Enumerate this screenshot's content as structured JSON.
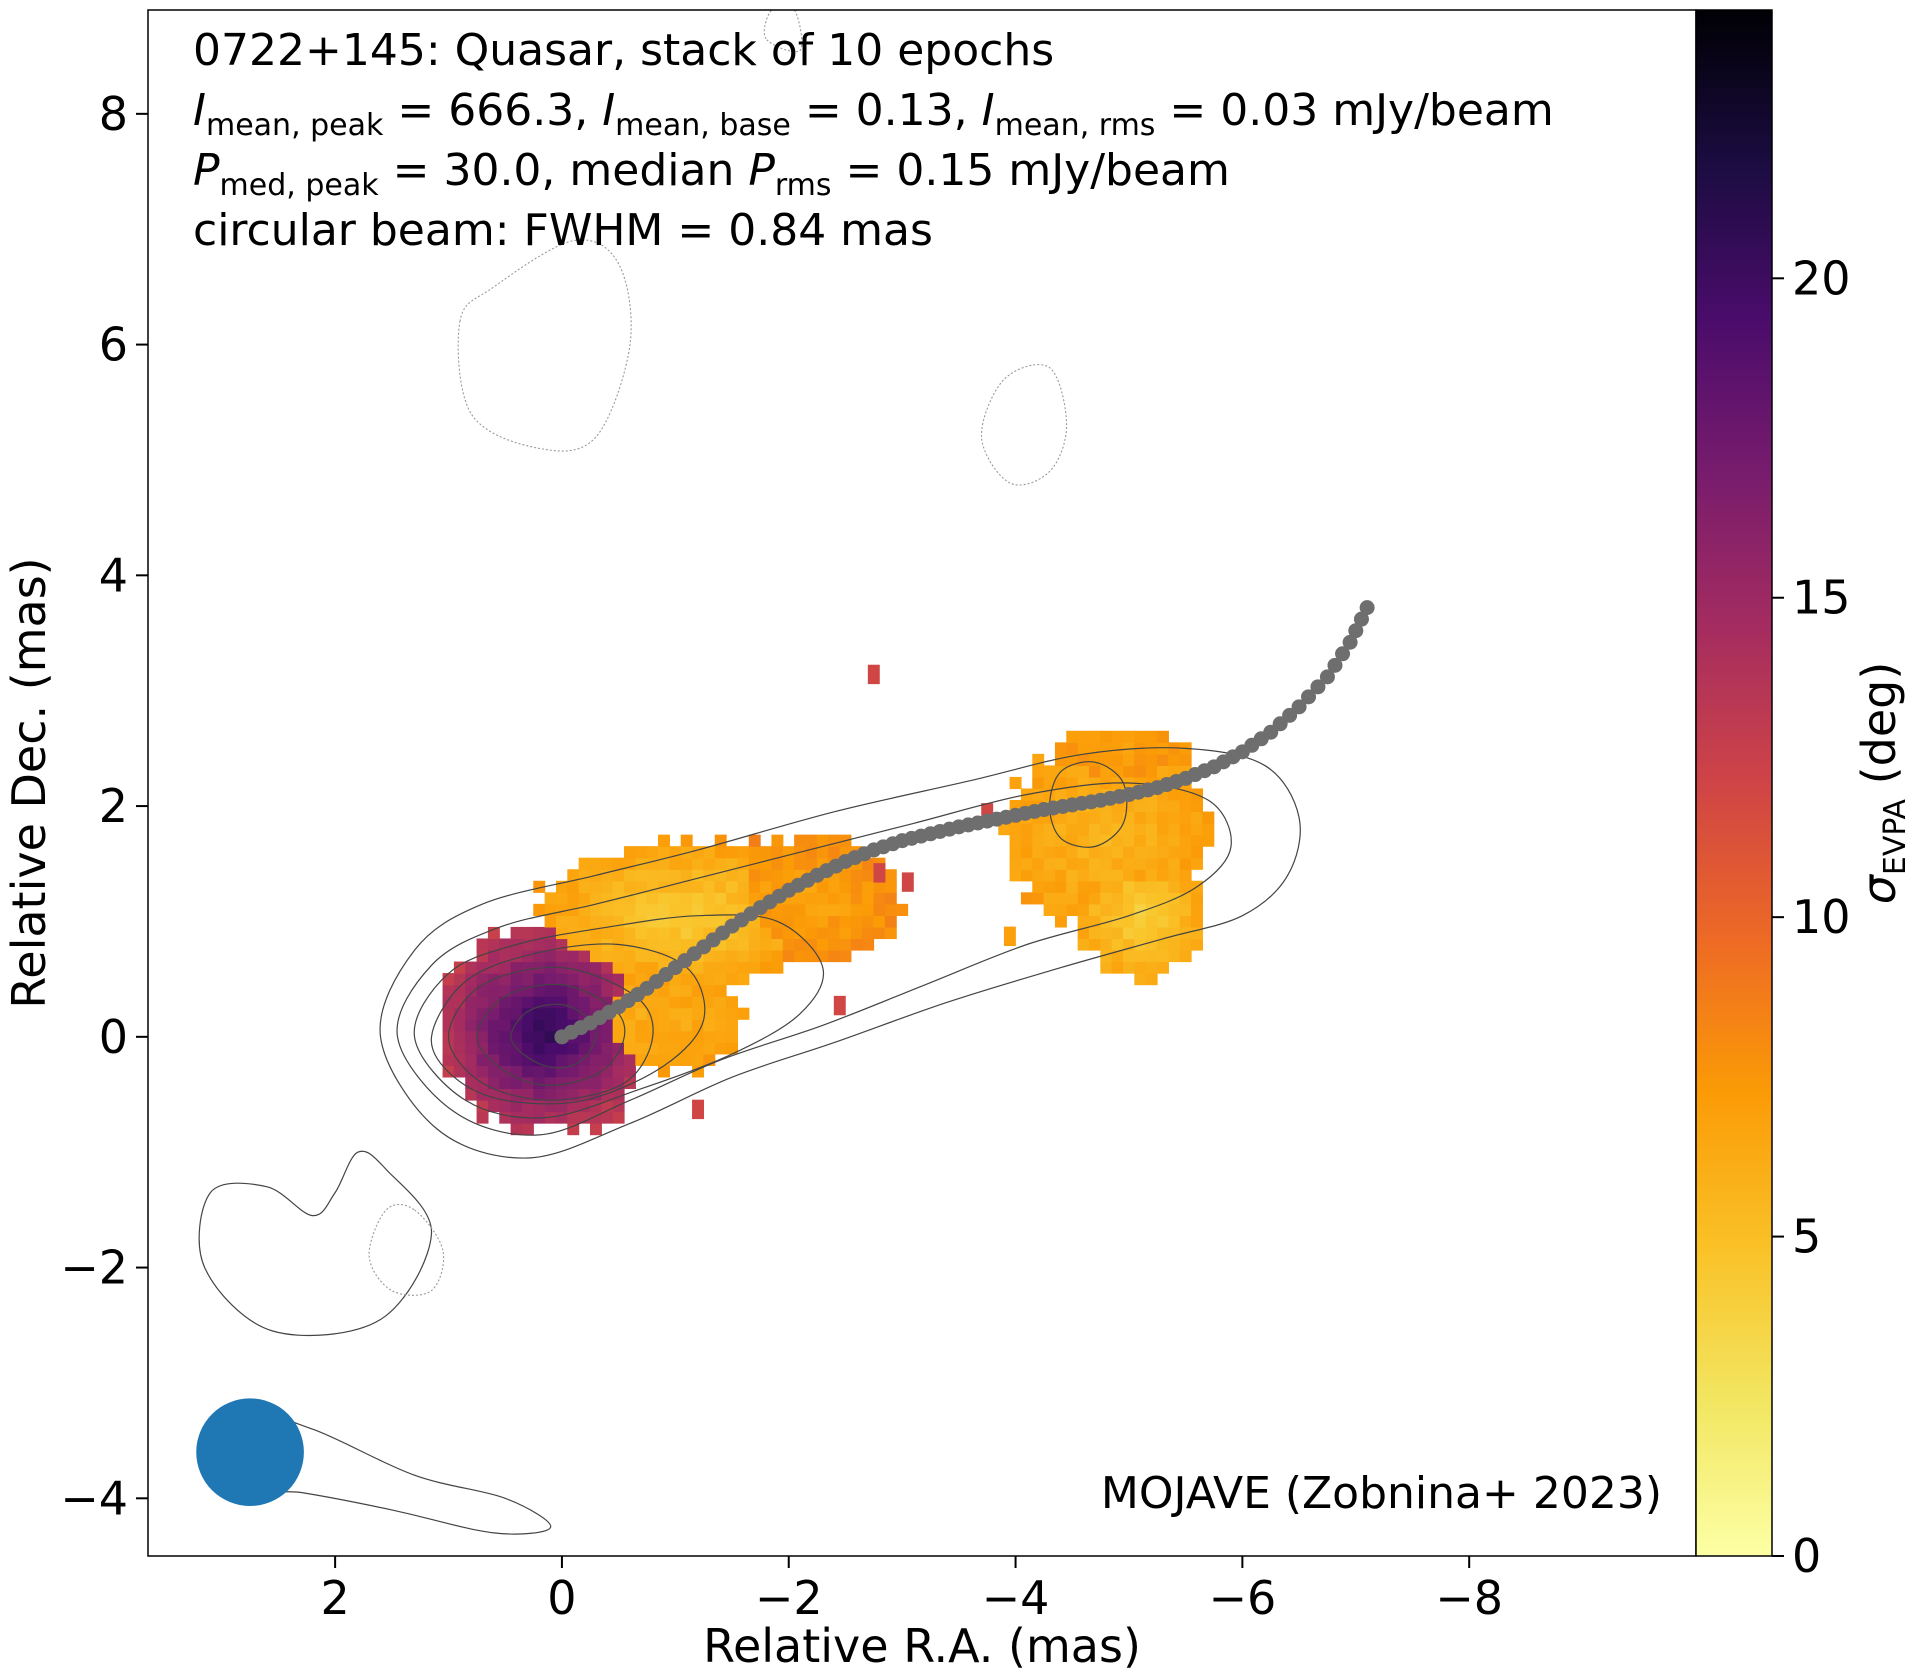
{
  "chart_data": {
    "type": "heatmap",
    "annotation_lines": [
      [
        {
          "t": "0722+145: Quasar, stack of 10 epochs"
        }
      ],
      [
        {
          "t": "I",
          "i": true
        },
        {
          "t": "mean, peak",
          "sub": true
        },
        {
          "t": " = 666.3, "
        },
        {
          "t": "I",
          "i": true
        },
        {
          "t": "mean, base",
          "sub": true
        },
        {
          "t": " = 0.13, "
        },
        {
          "t": "I",
          "i": true
        },
        {
          "t": "mean, rms",
          "sub": true
        },
        {
          "t": " = 0.03 mJy/beam"
        }
      ],
      [
        {
          "t": "P",
          "i": true
        },
        {
          "t": "med, peak",
          "sub": true
        },
        {
          "t": " = 30.0, median "
        },
        {
          "t": "P",
          "i": true
        },
        {
          "t": "rms",
          "sub": true
        },
        {
          "t": " = 0.15 mJy/beam"
        }
      ],
      [
        {
          "t": "circular beam: FWHM = 0.84 mas"
        }
      ]
    ],
    "credit": "MOJAVE (Zobnina+ 2023)",
    "xlabel": "Relative R.A. (mas)",
    "ylabel": "Relative Dec. (mas)",
    "xlim": [
      3.65,
      -10.0
    ],
    "ylim": [
      -4.5,
      8.9
    ],
    "xticks": [
      2,
      0,
      -2,
      -4,
      -6,
      -8
    ],
    "xtick_labels": [
      "2",
      "0",
      "−2",
      "−4",
      "−6",
      "−8"
    ],
    "yticks": [
      -4,
      -2,
      0,
      2,
      4,
      6,
      8
    ],
    "ytick_labels": [
      "−4",
      "−2",
      "0",
      "2",
      "4",
      "6",
      "8"
    ],
    "colorbar": {
      "label_main": "σ",
      "label_sub": "EVPA",
      "label_unit": " (deg)",
      "range": [
        0,
        24.2
      ],
      "ticks": [
        0,
        5,
        10,
        15,
        20
      ],
      "tick_labels": [
        "0",
        "5",
        "10",
        "15",
        "20"
      ],
      "colormap": "inferno_r"
    },
    "beam": {
      "x": 2.75,
      "y": -3.6,
      "fwhm": 0.84,
      "color": "#1f77b4"
    },
    "ridgeline": {
      "color": "#6e6e6e",
      "points": [
        [
          0,
          0
        ],
        [
          -0.25,
          0.12
        ],
        [
          -0.5,
          0.26
        ],
        [
          -0.75,
          0.42
        ],
        [
          -1,
          0.6
        ],
        [
          -1.25,
          0.78
        ],
        [
          -1.5,
          0.96
        ],
        [
          -1.75,
          1.12
        ],
        [
          -2,
          1.27
        ],
        [
          -2.25,
          1.4
        ],
        [
          -2.5,
          1.52
        ],
        [
          -2.75,
          1.62
        ],
        [
          -3,
          1.7
        ],
        [
          -3.25,
          1.76
        ],
        [
          -3.5,
          1.82
        ],
        [
          -3.75,
          1.87
        ],
        [
          -4,
          1.92
        ],
        [
          -4.25,
          1.97
        ],
        [
          -4.5,
          2.01
        ],
        [
          -4.75,
          2.05
        ],
        [
          -5,
          2.1
        ],
        [
          -5.25,
          2.16
        ],
        [
          -5.5,
          2.24
        ],
        [
          -5.75,
          2.34
        ],
        [
          -6,
          2.47
        ],
        [
          -6.25,
          2.64
        ],
        [
          -6.5,
          2.86
        ],
        [
          -6.75,
          3.12
        ],
        [
          -6.95,
          3.42
        ],
        [
          -7.1,
          3.72
        ]
      ]
    },
    "contours": [
      {
        "style": "solid",
        "points": [
          [
            1.6,
            0
          ],
          [
            1.3,
            0.75
          ],
          [
            0.7,
            1.15
          ],
          [
            -0.3,
            1.4
          ],
          [
            -1.2,
            1.62
          ],
          [
            -2.4,
            1.95
          ],
          [
            -3.6,
            2.22
          ],
          [
            -4.6,
            2.45
          ],
          [
            -5.5,
            2.5
          ],
          [
            -6.2,
            2.35
          ],
          [
            -6.5,
            1.9
          ],
          [
            -6.4,
            1.4
          ],
          [
            -6,
            1.05
          ],
          [
            -5.3,
            0.85
          ],
          [
            -4.4,
            0.6
          ],
          [
            -3.4,
            0.3
          ],
          [
            -2.4,
            -0.05
          ],
          [
            -1.5,
            -0.35
          ],
          [
            -0.6,
            -0.75
          ],
          [
            0.3,
            -1.05
          ],
          [
            1.1,
            -0.8
          ]
        ]
      },
      {
        "style": "solid",
        "points": [
          [
            1.45,
            0
          ],
          [
            1.15,
            0.62
          ],
          [
            0.55,
            0.95
          ],
          [
            -0.3,
            1.15
          ],
          [
            -1.1,
            1.35
          ],
          [
            -2.1,
            1.6
          ],
          [
            -3.1,
            1.85
          ],
          [
            -4.1,
            2.1
          ],
          [
            -5,
            2.2
          ],
          [
            -5.7,
            2.05
          ],
          [
            -5.9,
            1.65
          ],
          [
            -5.6,
            1.3
          ],
          [
            -5,
            1.05
          ],
          [
            -4.1,
            0.8
          ],
          [
            -3.2,
            0.45
          ],
          [
            -2.3,
            0.1
          ],
          [
            -1.4,
            -0.2
          ],
          [
            -0.6,
            -0.55
          ],
          [
            0.2,
            -0.85
          ],
          [
            0.95,
            -0.65
          ]
        ]
      },
      {
        "style": "solid",
        "points": [
          [
            1.3,
            0
          ],
          [
            1,
            0.55
          ],
          [
            0.4,
            0.8
          ],
          [
            -0.4,
            0.95
          ],
          [
            -1.2,
            1.05
          ],
          [
            -1.9,
            1
          ],
          [
            -2.3,
            0.6
          ],
          [
            -2.1,
            0.2
          ],
          [
            -1.5,
            -0.15
          ],
          [
            -0.7,
            -0.45
          ],
          [
            0.15,
            -0.7
          ],
          [
            0.85,
            -0.55
          ]
        ]
      },
      {
        "style": "solid",
        "points": [
          [
            1.15,
            0
          ],
          [
            0.85,
            0.48
          ],
          [
            0.25,
            0.72
          ],
          [
            -0.5,
            0.8
          ],
          [
            -1.1,
            0.6
          ],
          [
            -1.25,
            0.15
          ],
          [
            -0.9,
            -0.25
          ],
          [
            -0.2,
            -0.55
          ],
          [
            0.5,
            -0.55
          ],
          [
            0.95,
            -0.35
          ]
        ]
      },
      {
        "style": "solid",
        "points": [
          [
            1,
            0
          ],
          [
            0.7,
            0.45
          ],
          [
            0,
            0.6
          ],
          [
            -0.65,
            0.35
          ],
          [
            -0.8,
            0
          ],
          [
            -0.55,
            -0.4
          ],
          [
            0.1,
            -0.55
          ],
          [
            0.7,
            -0.4
          ]
        ]
      },
      {
        "style": "solid",
        "points": [
          [
            0.75,
            0
          ],
          [
            0.5,
            0.35
          ],
          [
            0,
            0.45
          ],
          [
            -0.45,
            0.25
          ],
          [
            -0.55,
            0
          ],
          [
            -0.35,
            -0.3
          ],
          [
            0.1,
            -0.42
          ],
          [
            0.5,
            -0.3
          ]
        ]
      },
      {
        "style": "solid",
        "points": [
          [
            0.45,
            0
          ],
          [
            0.3,
            0.22
          ],
          [
            0,
            0.28
          ],
          [
            -0.25,
            0.15
          ],
          [
            -0.3,
            0
          ],
          [
            -0.18,
            -0.2
          ],
          [
            0.05,
            -0.27
          ],
          [
            0.3,
            -0.18
          ]
        ]
      },
      {
        "style": "solid",
        "points": [
          [
            -4.3,
            2
          ],
          [
            -4.4,
            2.3
          ],
          [
            -4.7,
            2.38
          ],
          [
            -4.95,
            2.2
          ],
          [
            -4.95,
            1.85
          ],
          [
            -4.7,
            1.65
          ],
          [
            -4.4,
            1.72
          ]
        ]
      },
      {
        "style": "solid",
        "points": [
          [
            1.55,
            -1.15
          ],
          [
            1.15,
            -1.7
          ],
          [
            1.6,
            -2.45
          ],
          [
            2.55,
            -2.55
          ],
          [
            3.15,
            -2
          ],
          [
            3.1,
            -1.35
          ],
          [
            2.6,
            -1.3
          ],
          [
            2.2,
            -1.55
          ],
          [
            2,
            -1.35
          ],
          [
            1.8,
            -1
          ]
        ]
      },
      {
        "style": "solid",
        "points": [
          [
            2.75,
            -3.3
          ],
          [
            2.2,
            -3.4
          ],
          [
            1.3,
            -3.8
          ],
          [
            0.5,
            -4
          ],
          [
            0.1,
            -4.25
          ],
          [
            0.6,
            -4.3
          ],
          [
            1.5,
            -4.1
          ],
          [
            2.3,
            -3.95
          ],
          [
            2.8,
            -3.9
          ]
        ]
      },
      {
        "style": "dotted",
        "points": [
          [
            0.9,
            6.2
          ],
          [
            0.6,
            6.5
          ],
          [
            -0.1,
            6.9
          ],
          [
            -0.5,
            6.7
          ],
          [
            -0.6,
            6
          ],
          [
            -0.3,
            5.2
          ],
          [
            0.2,
            5.1
          ],
          [
            0.8,
            5.4
          ]
        ]
      },
      {
        "style": "dotted",
        "points": [
          [
            -3.7,
            5.2
          ],
          [
            -3.9,
            5.7
          ],
          [
            -4.3,
            5.8
          ],
          [
            -4.45,
            5.3
          ],
          [
            -4.3,
            4.9
          ],
          [
            -3.95,
            4.8
          ]
        ]
      },
      {
        "style": "dotted",
        "points": [
          [
            1.3,
            -1.5
          ],
          [
            1.05,
            -1.85
          ],
          [
            1.15,
            -2.2
          ],
          [
            1.5,
            -2.2
          ],
          [
            1.7,
            -1.9
          ],
          [
            1.55,
            -1.5
          ]
        ]
      },
      {
        "style": "dotted",
        "points": [
          [
            -1.8,
            8.65
          ],
          [
            -1.85,
            8.9
          ],
          [
            -2.05,
            8.9
          ],
          [
            -2.1,
            8.55
          ]
        ]
      }
    ],
    "polarization": {
      "regions": [
        {
          "cx": 0.15,
          "cy": 0.05,
          "rx": 0.95,
          "ry": 0.9,
          "center": 21,
          "edge": 13
        },
        {
          "cx": -1.05,
          "cy": 1.05,
          "rx": 1.25,
          "ry": 0.65,
          "center": 4,
          "edge": 7
        },
        {
          "cx": -2.15,
          "cy": 1.2,
          "rx": 0.85,
          "ry": 0.55,
          "center": 6.5,
          "edge": 8
        },
        {
          "cx": -0.9,
          "cy": 0.15,
          "rx": 0.7,
          "ry": 0.45,
          "center": 6,
          "edge": 7
        },
        {
          "cx": -4.8,
          "cy": 1.75,
          "rx": 0.9,
          "ry": 0.8,
          "center": 5.5,
          "edge": 7
        },
        {
          "cx": -5.1,
          "cy": 1.05,
          "rx": 0.55,
          "ry": 0.55,
          "center": 4,
          "edge": 6.5
        },
        {
          "cx": -4.9,
          "cy": 2.45,
          "rx": 0.6,
          "ry": 0.25,
          "center": 7,
          "edge": 7.5
        }
      ],
      "specks": [
        [
          -2.75,
          3.12,
          12
        ],
        [
          -2.8,
          1.4,
          12
        ],
        [
          -3.05,
          1.32,
          12
        ],
        [
          -3.75,
          1.92,
          12
        ],
        [
          -1.2,
          -0.65,
          12
        ],
        [
          -2.45,
          0.25,
          12
        ],
        [
          -3.95,
          0.85,
          7
        ]
      ]
    }
  }
}
